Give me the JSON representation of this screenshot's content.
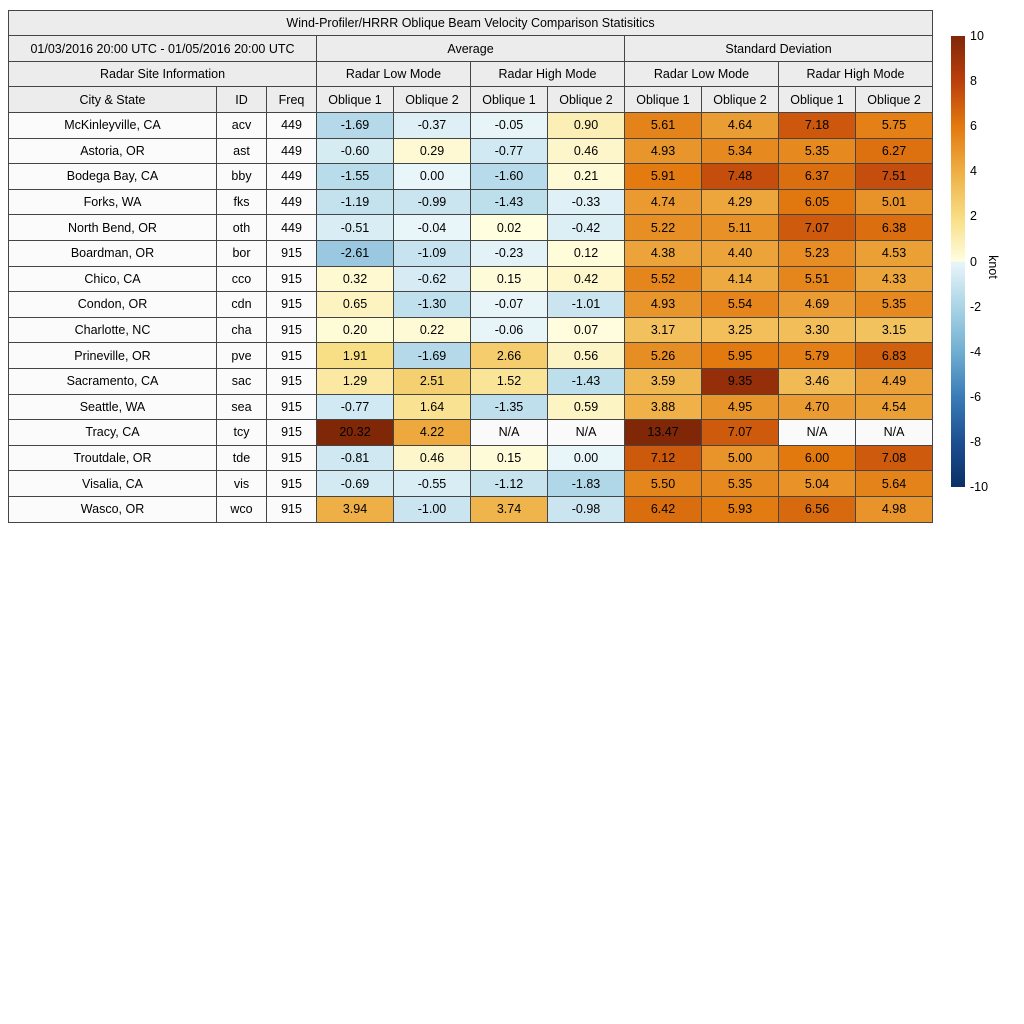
{
  "title": "Wind-Profiler/HRRR Oblique Beam Velocity Comparison Statisitics",
  "header": {
    "date_range": "01/03/2016 20:00 UTC - 01/05/2016 20:00 UTC",
    "group_average": "Average",
    "group_stddev": "Standard Deviation",
    "site_info": "Radar Site Information",
    "modes": [
      "Radar Low Mode",
      "Radar High Mode",
      "Radar Low Mode",
      "Radar High Mode"
    ],
    "columns": [
      "City & State",
      "ID",
      "Freq",
      "Oblique 1",
      "Oblique 2",
      "Oblique 1",
      "Oblique 2",
      "Oblique 1",
      "Oblique 2",
      "Oblique 1",
      "Oblique 2"
    ]
  },
  "colorbar": {
    "label": "knot",
    "ticks": [
      10,
      8,
      6,
      4,
      2,
      0,
      -2,
      -4,
      -6,
      -8,
      -10
    ],
    "range": [
      -10,
      10
    ],
    "scale": {
      "pos_stops": [
        [
          0,
          "#fffee0"
        ],
        [
          2,
          "#f8dc81"
        ],
        [
          4,
          "#eeae44"
        ],
        [
          6,
          "#e2790f"
        ],
        [
          8,
          "#bc3f0c"
        ],
        [
          10,
          "#802708"
        ]
      ],
      "neg_stops": [
        [
          -10,
          "#0b2f66"
        ],
        [
          -8,
          "#1c4f92"
        ],
        [
          -6,
          "#3a7cb8"
        ],
        [
          -4,
          "#70aed1"
        ],
        [
          -2,
          "#abd4e6"
        ],
        [
          0,
          "#e9f6f9"
        ]
      ],
      "na_color": "#fafafa"
    }
  },
  "chart_data": {
    "type": "heatmap",
    "title": "Wind-Profiler/HRRR Oblique Beam Velocity Comparison Statisitics",
    "unit": "knot",
    "color_range": [
      -10,
      10
    ],
    "column_groups": [
      "Radar Site Information",
      "Average / Radar Low Mode",
      "Average / Radar High Mode",
      "Standard Deviation / Radar Low Mode",
      "Standard Deviation / Radar High Mode"
    ],
    "columns": [
      "City & State",
      "ID",
      "Freq",
      "Avg Low Oblique 1",
      "Avg Low Oblique 2",
      "Avg High Oblique 1",
      "Avg High Oblique 2",
      "SD Low Oblique 1",
      "SD Low Oblique 2",
      "SD High Oblique 1",
      "SD High Oblique 2"
    ],
    "rows": [
      [
        "McKinleyville, CA",
        "acv",
        "449",
        "-1.69",
        "-0.37",
        "-0.05",
        "0.90",
        "5.61",
        "4.64",
        "7.18",
        "5.75"
      ],
      [
        "Astoria, OR",
        "ast",
        "449",
        "-0.60",
        "0.29",
        "-0.77",
        "0.46",
        "4.93",
        "5.34",
        "5.35",
        "6.27"
      ],
      [
        "Bodega Bay, CA",
        "bby",
        "449",
        "-1.55",
        "0.00",
        "-1.60",
        "0.21",
        "5.91",
        "7.48",
        "6.37",
        "7.51"
      ],
      [
        "Forks, WA",
        "fks",
        "449",
        "-1.19",
        "-0.99",
        "-1.43",
        "-0.33",
        "4.74",
        "4.29",
        "6.05",
        "5.01"
      ],
      [
        "North Bend, OR",
        "oth",
        "449",
        "-0.51",
        "-0.04",
        "0.02",
        "-0.42",
        "5.22",
        "5.11",
        "7.07",
        "6.38"
      ],
      [
        "Boardman, OR",
        "bor",
        "915",
        "-2.61",
        "-1.09",
        "-0.23",
        "0.12",
        "4.38",
        "4.40",
        "5.23",
        "4.53"
      ],
      [
        "Chico, CA",
        "cco",
        "915",
        "0.32",
        "-0.62",
        "0.15",
        "0.42",
        "5.52",
        "4.14",
        "5.51",
        "4.33"
      ],
      [
        "Condon, OR",
        "cdn",
        "915",
        "0.65",
        "-1.30",
        "-0.07",
        "-1.01",
        "4.93",
        "5.54",
        "4.69",
        "5.35"
      ],
      [
        "Charlotte, NC",
        "cha",
        "915",
        "0.20",
        "0.22",
        "-0.06",
        "0.07",
        "3.17",
        "3.25",
        "3.30",
        "3.15"
      ],
      [
        "Prineville, OR",
        "pve",
        "915",
        "1.91",
        "-1.69",
        "2.66",
        "0.56",
        "5.26",
        "5.95",
        "5.79",
        "6.83"
      ],
      [
        "Sacramento, CA",
        "sac",
        "915",
        "1.29",
        "2.51",
        "1.52",
        "-1.43",
        "3.59",
        "9.35",
        "3.46",
        "4.49"
      ],
      [
        "Seattle, WA",
        "sea",
        "915",
        "-0.77",
        "1.64",
        "-1.35",
        "0.59",
        "3.88",
        "4.95",
        "4.70",
        "4.54"
      ],
      [
        "Tracy, CA",
        "tcy",
        "915",
        "20.32",
        "4.22",
        "N/A",
        "N/A",
        "13.47",
        "7.07",
        "N/A",
        "N/A"
      ],
      [
        "Troutdale, OR",
        "tde",
        "915",
        "-0.81",
        "0.46",
        "0.15",
        "0.00",
        "7.12",
        "5.00",
        "6.00",
        "7.08"
      ],
      [
        "Visalia, CA",
        "vis",
        "915",
        "-0.69",
        "-0.55",
        "-1.12",
        "-1.83",
        "5.50",
        "5.35",
        "5.04",
        "5.64"
      ],
      [
        "Wasco, OR",
        "wco",
        "915",
        "3.94",
        "-1.00",
        "3.74",
        "-0.98",
        "6.42",
        "5.93",
        "6.56",
        "4.98"
      ]
    ]
  }
}
